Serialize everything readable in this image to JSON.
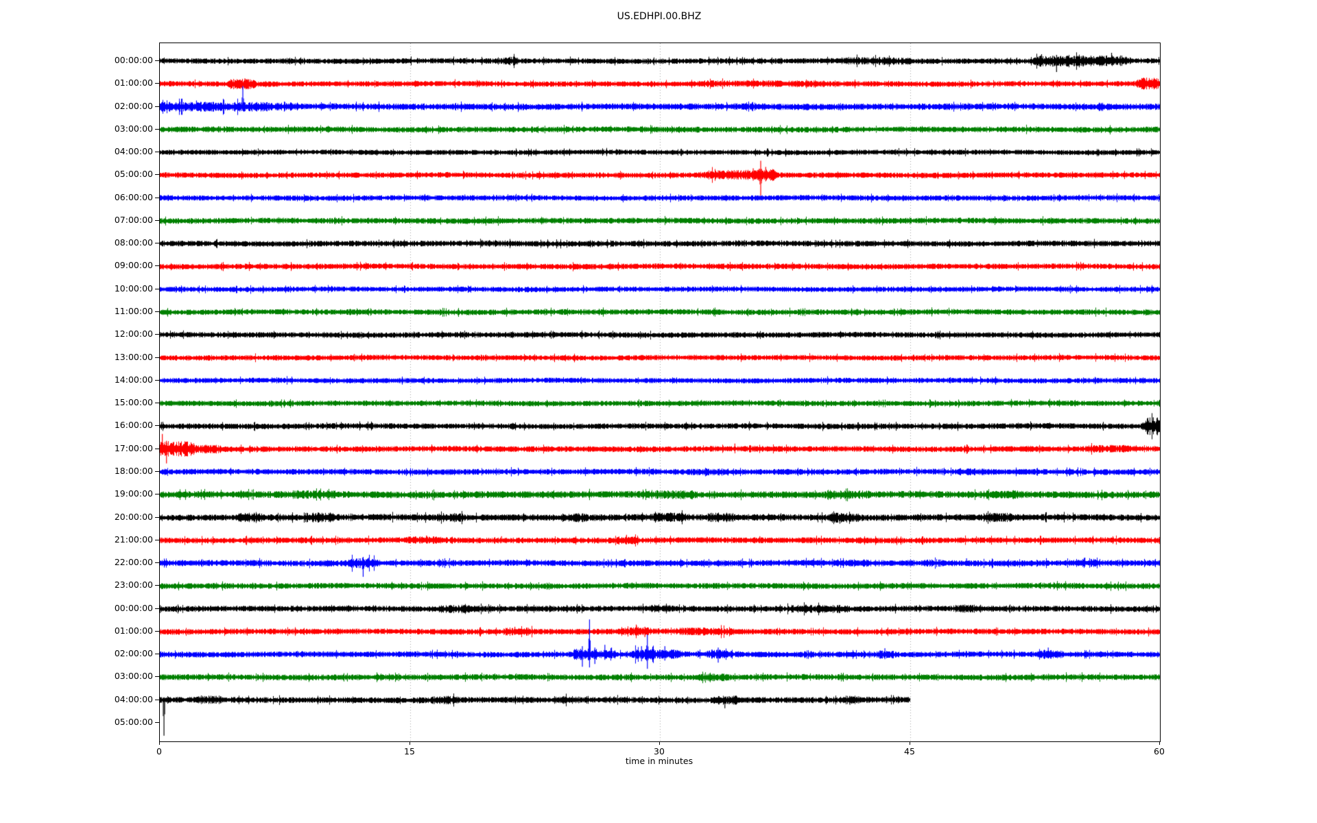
{
  "chart_data": {
    "type": "line",
    "subtype": "seismogram-helicorder",
    "title": "US.EDHPI.00.BHZ",
    "xlabel": "time in minutes",
    "x_range": [
      0,
      60
    ],
    "x_ticks": [
      "0",
      "15",
      "30",
      "45",
      "60"
    ],
    "x_tick_values": [
      0,
      15,
      30,
      45,
      60
    ],
    "grid_minutes": [
      15,
      30,
      45
    ],
    "grid_color": "#a0a0a0",
    "trace_colors_cycle": [
      "#000000",
      "#ff0000",
      "#0000ff",
      "#008000"
    ],
    "rows": [
      {
        "label": "00:00:00",
        "color": "#000000",
        "amp": 2.8,
        "span": [
          0,
          60
        ],
        "events": [
          [
            20.8,
            21.3,
            1.7
          ],
          [
            41,
            45,
            1.45
          ],
          [
            52.5,
            58,
            2.1
          ]
        ],
        "spikes": [
          [
            21.1,
            6,
            4
          ],
          [
            52.9,
            10,
            6
          ],
          [
            53.8,
            9,
            16
          ],
          [
            55.4,
            8,
            8
          ],
          [
            57.1,
            12,
            5
          ]
        ]
      },
      {
        "label": "01:00:00",
        "color": "#ff0000",
        "amp": 2.8,
        "span": [
          0,
          60
        ],
        "events": [
          [
            4.3,
            5.6,
            2.1
          ],
          [
            32.5,
            40,
            1.3
          ],
          [
            58.8,
            59.8,
            2.4
          ]
        ],
        "spikes": [
          [
            5.1,
            8,
            6
          ],
          [
            59.2,
            9,
            8
          ]
        ]
      },
      {
        "label": "02:00:00",
        "color": "#0000ff",
        "amp": 3.4,
        "span": [
          0,
          60
        ],
        "events": [
          [
            0,
            6.5,
            1.55
          ],
          [
            6.8,
            8.2,
            1.3
          ]
        ],
        "spikes": [
          [
            2.2,
            9,
            4
          ],
          [
            4.98,
            30,
            6
          ],
          [
            7.5,
            7,
            3
          ]
        ]
      },
      {
        "label": "03:00:00",
        "color": "#008000",
        "amp": 3.0,
        "span": [
          0,
          60
        ]
      },
      {
        "label": "04:00:00",
        "color": "#000000",
        "amp": 2.6,
        "span": [
          0,
          60
        ]
      },
      {
        "label": "05:00:00",
        "color": "#ff0000",
        "amp": 2.8,
        "span": [
          0,
          60
        ],
        "events": [
          [
            32.8,
            35.8,
            1.9
          ],
          [
            35.8,
            36.8,
            2.4
          ]
        ],
        "spikes": [
          [
            33.5,
            7,
            5
          ],
          [
            35.6,
            10,
            8
          ],
          [
            36.05,
            21,
            30
          ],
          [
            36.35,
            12,
            9
          ]
        ]
      },
      {
        "label": "06:00:00",
        "color": "#0000ff",
        "amp": 2.8,
        "span": [
          0,
          60
        ],
        "spikes": [
          [
            18.3,
            5,
            3
          ]
        ]
      },
      {
        "label": "07:00:00",
        "color": "#008000",
        "amp": 3.0,
        "span": [
          0,
          60
        ]
      },
      {
        "label": "08:00:00",
        "color": "#000000",
        "amp": 3.0,
        "span": [
          0,
          60
        ]
      },
      {
        "label": "09:00:00",
        "color": "#ff0000",
        "amp": 2.9,
        "span": [
          0,
          60
        ]
      },
      {
        "label": "10:00:00",
        "color": "#0000ff",
        "amp": 2.7,
        "span": [
          0,
          60
        ]
      },
      {
        "label": "11:00:00",
        "color": "#008000",
        "amp": 2.9,
        "span": [
          0,
          60
        ]
      },
      {
        "label": "12:00:00",
        "color": "#000000",
        "amp": 2.9,
        "span": [
          0,
          60
        ]
      },
      {
        "label": "13:00:00",
        "color": "#ff0000",
        "amp": 2.8,
        "span": [
          0,
          60
        ]
      },
      {
        "label": "14:00:00",
        "color": "#0000ff",
        "amp": 2.7,
        "span": [
          0,
          60
        ]
      },
      {
        "label": "15:00:00",
        "color": "#008000",
        "amp": 2.8,
        "span": [
          0,
          60
        ],
        "spikes": [
          [
            32.5,
            5,
            3
          ]
        ]
      },
      {
        "label": "16:00:00",
        "color": "#000000",
        "amp": 2.9,
        "span": [
          0,
          60
        ],
        "events": [
          [
            59.2,
            60,
            3.4
          ]
        ],
        "spikes": [
          [
            0.1,
            6,
            5
          ],
          [
            59.6,
            13,
            9
          ],
          [
            59.85,
            12,
            13
          ]
        ]
      },
      {
        "label": "17:00:00",
        "color": "#ff0000",
        "amp": 3.0,
        "span": [
          0,
          60
        ],
        "events": [
          [
            0,
            1.8,
            2.8
          ],
          [
            1.8,
            3.5,
            1.6
          ],
          [
            55.8,
            58,
            1.35
          ]
        ],
        "spikes": [
          [
            0.15,
            22,
            8
          ],
          [
            0.4,
            12,
            21
          ],
          [
            0.8,
            10,
            9
          ],
          [
            34.5,
            8,
            3
          ]
        ]
      },
      {
        "label": "18:00:00",
        "color": "#0000ff",
        "amp": 3.0,
        "span": [
          0,
          60
        ],
        "events": [
          [
            32,
            34,
            1.3
          ],
          [
            48,
            50,
            1.25
          ]
        ]
      },
      {
        "label": "19:00:00",
        "color": "#008000",
        "amp": 3.6,
        "span": [
          0,
          60
        ],
        "events": [
          [
            8,
            10.5,
            1.3
          ],
          [
            29.5,
            32,
            1.35
          ],
          [
            40,
            42.5,
            1.3
          ],
          [
            49.5,
            51.5,
            1.3
          ]
        ]
      },
      {
        "label": "20:00:00",
        "color": "#000000",
        "amp": 3.4,
        "span": [
          0,
          60
        ],
        "events": [
          [
            4.8,
            6,
            1.5
          ],
          [
            8.8,
            10.2,
            1.6
          ],
          [
            16.8,
            18,
            1.5
          ],
          [
            24.5,
            25.5,
            1.5
          ],
          [
            29.8,
            31.5,
            1.5
          ],
          [
            33,
            34.3,
            1.6
          ],
          [
            40.3,
            41.8,
            1.6
          ],
          [
            49.5,
            51,
            1.5
          ]
        ],
        "spikes": [
          [
            40.8,
            4,
            9
          ]
        ]
      },
      {
        "label": "21:00:00",
        "color": "#ff0000",
        "amp": 3.0,
        "span": [
          0,
          60
        ],
        "events": [
          [
            15,
            17,
            1.4
          ],
          [
            27.5,
            28.5,
            1.5
          ]
        ],
        "spikes": [
          [
            16,
            7,
            4
          ],
          [
            20.5,
            6,
            4
          ],
          [
            28,
            8,
            6
          ],
          [
            36,
            6,
            4
          ]
        ]
      },
      {
        "label": "22:00:00",
        "color": "#0000ff",
        "amp": 3.2,
        "span": [
          0,
          60
        ],
        "events": [
          [
            11.5,
            12.9,
            1.8
          ],
          [
            41.5,
            42.5,
            1.3
          ],
          [
            46,
            47,
            1.3
          ],
          [
            55,
            56,
            1.4
          ]
        ],
        "spikes": [
          [
            12.2,
            9,
            20
          ],
          [
            12.55,
            8,
            6
          ],
          [
            48.4,
            7,
            4
          ],
          [
            55.5,
            8,
            5
          ]
        ]
      },
      {
        "label": "23:00:00",
        "color": "#008000",
        "amp": 3.0,
        "span": [
          0,
          60
        ]
      },
      {
        "label": "00:00:00",
        "color": "#000000",
        "amp": 3.1,
        "span": [
          0,
          60
        ],
        "events": [
          [
            16.8,
            19.2,
            1.45
          ],
          [
            29.5,
            30.5,
            1.4
          ],
          [
            37.8,
            41,
            1.4
          ],
          [
            47.8,
            49,
            1.4
          ]
        ]
      },
      {
        "label": "01:00:00",
        "color": "#ff0000",
        "amp": 3.0,
        "span": [
          0,
          60
        ],
        "events": [
          [
            20.8,
            22.2,
            1.5
          ],
          [
            27.6,
            29.3,
            1.6
          ],
          [
            31,
            34.2,
            1.4
          ]
        ],
        "spikes": [
          [
            21.3,
            7,
            5
          ],
          [
            28.6,
            9,
            6
          ],
          [
            29.1,
            7,
            8
          ]
        ]
      },
      {
        "label": "02:00:00",
        "color": "#0000ff",
        "amp": 3.0,
        "span": [
          0,
          60
        ],
        "events": [
          [
            24.9,
            26.3,
            2.1
          ],
          [
            26.4,
            27.3,
            1.6
          ],
          [
            28.4,
            29.6,
            2.0
          ],
          [
            29.9,
            31.1,
            1.8
          ],
          [
            33,
            34.2,
            1.6
          ],
          [
            43.2,
            44,
            1.5
          ],
          [
            52.8,
            54,
            1.5
          ]
        ],
        "spikes": [
          [
            25.35,
            12,
            18
          ],
          [
            25.78,
            51,
            19
          ],
          [
            26.1,
            10,
            14
          ],
          [
            26.7,
            14,
            8
          ],
          [
            27.1,
            10,
            6
          ],
          [
            28.9,
            12,
            10
          ],
          [
            29.25,
            29,
            21
          ],
          [
            30.3,
            12,
            9
          ],
          [
            33.5,
            10,
            12
          ],
          [
            43.5,
            9,
            7
          ],
          [
            53.3,
            10,
            6
          ]
        ]
      },
      {
        "label": "03:00:00",
        "color": "#008000",
        "amp": 3.1,
        "span": [
          0,
          60
        ],
        "events": [
          [
            32.5,
            34,
            1.3
          ]
        ]
      },
      {
        "label": "04:00:00",
        "color": "#000000",
        "amp": 3.1,
        "span": [
          0,
          45
        ],
        "events": [
          [
            2.4,
            3.6,
            1.5
          ],
          [
            16.4,
            17.6,
            1.4
          ],
          [
            23.8,
            25,
            1.4
          ],
          [
            33.4,
            34.6,
            1.6
          ],
          [
            41,
            41.9,
            1.5
          ]
        ],
        "spikes": [
          [
            0.25,
            4,
            52
          ],
          [
            33.9,
            5,
            12
          ],
          [
            41.4,
            6,
            7
          ]
        ]
      },
      {
        "label": "05:00:00",
        "color": null,
        "amp": 0,
        "span": null
      }
    ]
  }
}
